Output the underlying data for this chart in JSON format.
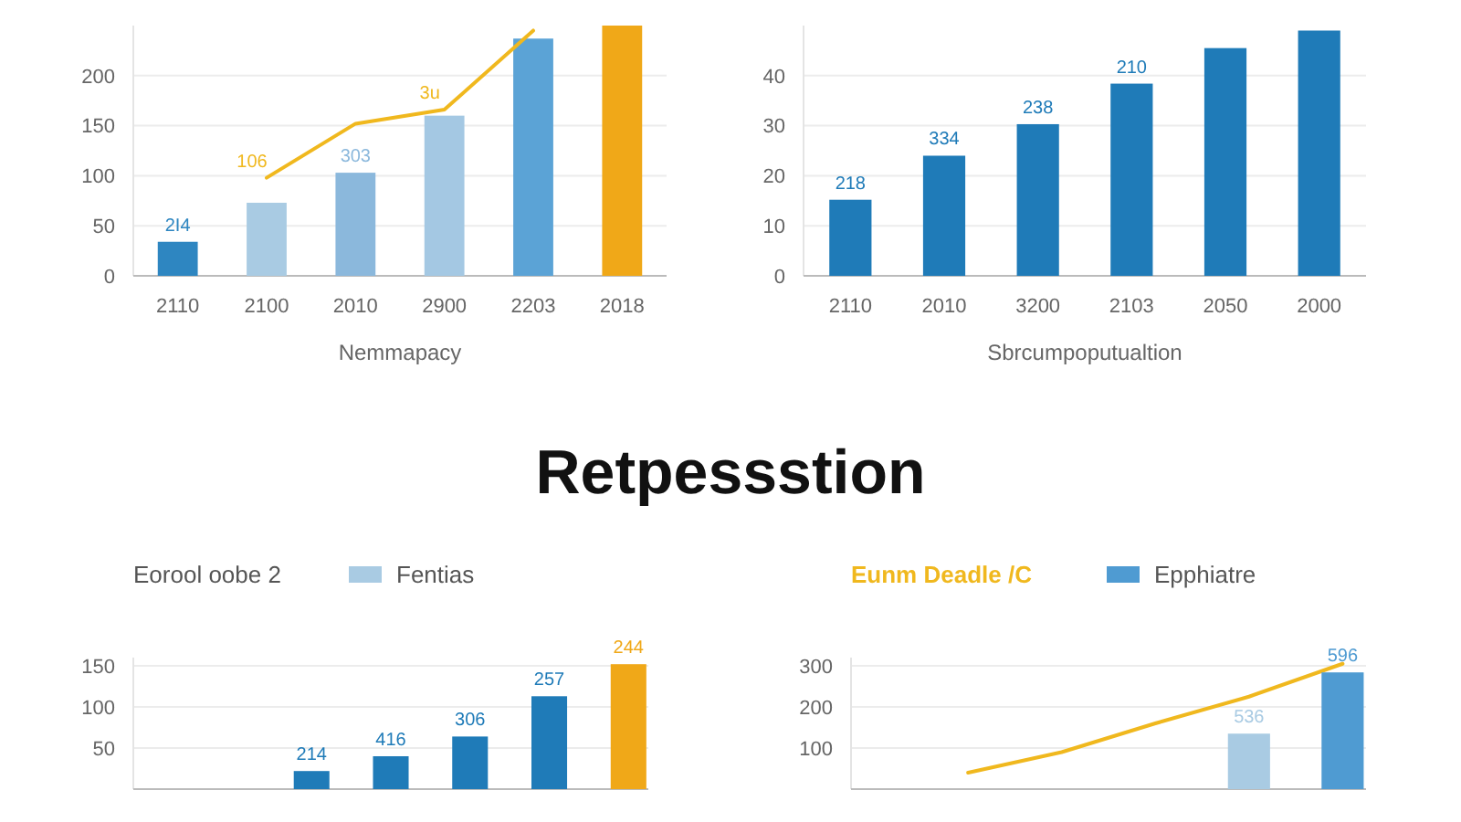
{
  "chart_data": [
    {
      "type": "bar",
      "xlabel": "Nemmapacy",
      "categories": [
        "2110",
        "2100",
        "2010",
        "2900",
        "2203",
        "2018"
      ],
      "ylim": [
        0,
        250
      ],
      "yticks": [
        0,
        50,
        100,
        150,
        200
      ],
      "grid": "y",
      "series": [
        {
          "colors": [
            "#2e86c1",
            "#a9cbe3",
            "#8bb8dc",
            "#a4c8e3",
            "#5ba3d6",
            "#f0a818"
          ],
          "values": [
            34,
            73,
            103,
            160,
            237,
            250
          ]
        },
        {
          "type": "line",
          "color": "#f0b81e",
          "values": [
            null,
            98,
            152,
            166,
            245,
            null
          ]
        }
      ],
      "annotations": [
        {
          "text": "2I4",
          "x": "2110",
          "y": 34
        },
        {
          "text": "303",
          "x": "2010",
          "y": 103
        },
        {
          "text": "106",
          "x": "2100",
          "y": 98
        },
        {
          "text": "3u",
          "x": "2900",
          "y": 166
        }
      ]
    },
    {
      "type": "bar",
      "xlabel": "Sbrcumpoputualtion",
      "categories": [
        "2110",
        "2010",
        "3200",
        "2103",
        "2050",
        "2000"
      ],
      "ylim": [
        0,
        50
      ],
      "yticks": [
        0,
        10,
        20,
        30,
        40
      ],
      "grid": "y",
      "series": [
        {
          "color": "#1f7bb8",
          "values": [
            15.2,
            24,
            30.3,
            38.4,
            45.5,
            49
          ]
        }
      ],
      "annotations": [
        {
          "text": "218",
          "x": "2110",
          "y": 15.2
        },
        {
          "text": "334",
          "x": "2010",
          "y": 24
        },
        {
          "text": "238",
          "x": "3200",
          "y": 30.3
        },
        {
          "text": "210",
          "x": "2103",
          "y": 38.4
        }
      ]
    },
    {
      "type": "bar",
      "title": "Retpessstion",
      "legend_title": "Eorool oobe 2",
      "legend": "top",
      "categories": [
        null,
        null,
        null,
        null,
        null,
        null,
        null
      ],
      "ylim": [
        0,
        160
      ],
      "yticks": [
        50,
        100,
        150
      ],
      "grid": "y",
      "series": [
        {
          "name": "Fentias",
          "color": "#a9cbe3",
          "colors": [
            "#1f7bb8",
            "#1f7bb8",
            "#1f7bb8",
            "#1f7bb8",
            "#1f7bb8",
            "#1f7bb8",
            "#f0a818"
          ],
          "values": [
            null,
            null,
            22,
            40,
            64,
            113,
            152
          ]
        }
      ],
      "annotations": [
        {
          "text": "214",
          "y": 22
        },
        {
          "text": "416",
          "y": 40
        },
        {
          "text": "306",
          "y": 64
        },
        {
          "text": "257",
          "y": 113
        },
        {
          "text": "244",
          "y": 152
        }
      ]
    },
    {
      "type": "bar",
      "legend": "top",
      "categories": [
        null,
        null,
        null,
        null,
        null,
        null
      ],
      "ylim": [
        0,
        320
      ],
      "yticks": [
        100,
        200,
        300
      ],
      "grid": "y",
      "series": [
        {
          "type": "line",
          "name": "Eunm Deadle /C",
          "color": "#f0b81e",
          "values": [
            null,
            40,
            90,
            160,
            225,
            305
          ]
        },
        {
          "name": "Epphiatre",
          "color": "#4f9bd2",
          "colors": [
            "#4f9bd2",
            "#4f9bd2",
            "#4f9bd2",
            "#4f9bd2",
            "#a9cbe3",
            "#4f9bd2"
          ],
          "values": [
            null,
            null,
            null,
            null,
            135,
            284
          ]
        }
      ],
      "annotations": [
        {
          "text": "536",
          "y": 135
        },
        {
          "text": "596",
          "y": 284
        }
      ]
    }
  ]
}
